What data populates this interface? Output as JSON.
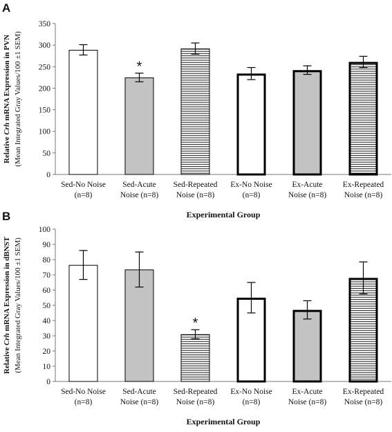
{
  "chart_data": [
    {
      "type": "bar",
      "panel_label": "A",
      "categories": [
        [
          "Sed-No Noise",
          "(n=8)"
        ],
        [
          "Sed-Acute",
          "Noise (n=8)"
        ],
        [
          "Sed-Repeated",
          "Noise (n=8)"
        ],
        [
          "Ex-No Noise",
          "(n=8)"
        ],
        [
          "Ex-Acute",
          "Noise (n=8)"
        ],
        [
          "Ex-Repeated",
          "Noise (n=8)"
        ]
      ],
      "values": [
        289,
        225,
        292,
        234,
        242,
        261
      ],
      "errors": [
        12,
        10,
        13,
        14,
        10,
        13
      ],
      "fills": [
        "white",
        "gray",
        "hatch",
        "white",
        "gray",
        "hatch"
      ],
      "thick_border": [
        false,
        false,
        false,
        true,
        true,
        true
      ],
      "annotations": [
        "",
        "*",
        "",
        "",
        "",
        ""
      ],
      "ylim": [
        0,
        350
      ],
      "yticks": [
        0,
        50,
        100,
        150,
        200,
        250,
        300,
        350
      ],
      "ylabel": {
        "line1_prefix": "Relative ",
        "line1_gene": "Crh",
        "line1_suffix": " mRNA Expression in PVN",
        "line2": "(Mean Integrated Gray Values/100 ±1 SEM)"
      },
      "xlabel": "Experimental Group"
    },
    {
      "type": "bar",
      "panel_label": "B",
      "categories": [
        [
          "Sed-No Noise",
          "(n=8)"
        ],
        [
          "Sed-Acute",
          "Noise (n=8)"
        ],
        [
          "Sed-Repeated",
          "Noise (n=8)"
        ],
        [
          "Ex-No Noise",
          "(n=8)"
        ],
        [
          "Ex-Acute",
          "Noise (n=8)"
        ],
        [
          "Ex-Repeated",
          "Noise (n=8)"
        ]
      ],
      "values": [
        76.5,
        73.5,
        31,
        55,
        47,
        68
      ],
      "errors": [
        9.5,
        11.5,
        3,
        10,
        6,
        10.5
      ],
      "fills": [
        "white",
        "gray",
        "hatch",
        "white",
        "gray",
        "hatch"
      ],
      "thick_border": [
        false,
        false,
        false,
        true,
        true,
        true
      ],
      "annotations": [
        "",
        "",
        "*",
        "",
        "",
        ""
      ],
      "ylim": [
        0,
        100
      ],
      "yticks": [
        0,
        10,
        20,
        30,
        40,
        50,
        60,
        70,
        80,
        90,
        100
      ],
      "ylabel": {
        "line1_prefix": "Relative ",
        "line1_gene": "Crh",
        "line1_suffix": " mRNA Expression in dBNST",
        "line2": "(Mean Integrated Gray Values/100 ±1 SEM)"
      },
      "xlabel": "Experimental Group"
    }
  ],
  "colors": {
    "gray_fill": "#c3c3c3",
    "axis": "#777777",
    "bar_stroke": "#000000",
    "hatch_line": "#000000"
  }
}
